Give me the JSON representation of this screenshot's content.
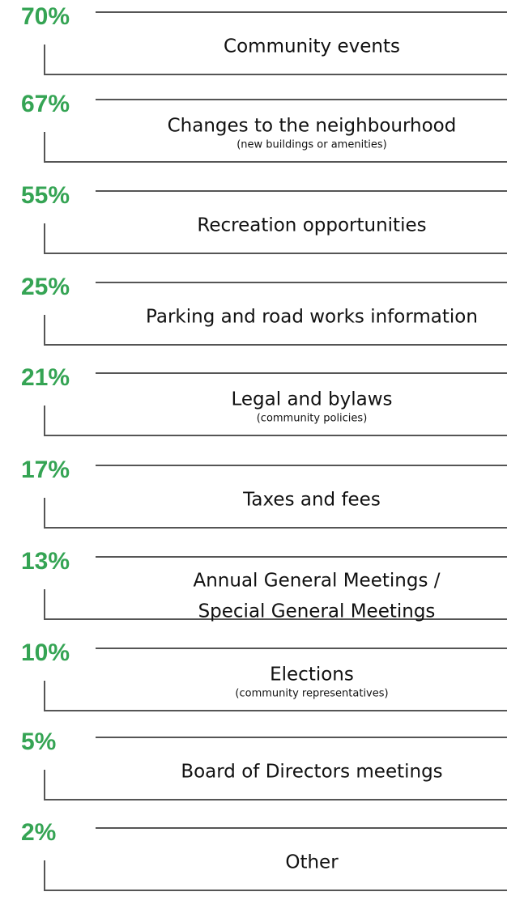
{
  "items": [
    {
      "percent": "70%",
      "lines": [
        "Community events"
      ]
    },
    {
      "percent": "67%",
      "lines": [
        "Changes to the neighbourhood"
      ],
      "note": "(new buildings or amenities)"
    },
    {
      "percent": "55%",
      "lines": [
        "Recreation opportunities"
      ]
    },
    {
      "percent": "25%",
      "lines": [
        "Parking and road works information"
      ]
    },
    {
      "percent": "21%",
      "lines": [
        "Legal and bylaws"
      ],
      "note": "(community policies)"
    },
    {
      "percent": "17%",
      "lines": [
        "Taxes and fees"
      ]
    },
    {
      "percent": "13%",
      "lines": [
        "Annual General Meetings /",
        "Special General Meetings"
      ]
    },
    {
      "percent": "10%",
      "lines": [
        "Elections"
      ],
      "note": "(community representatives)"
    },
    {
      "percent": "5%",
      "lines": [
        "Board of Directors meetings"
      ]
    },
    {
      "percent": "2%",
      "lines": [
        "Other"
      ]
    }
  ]
}
